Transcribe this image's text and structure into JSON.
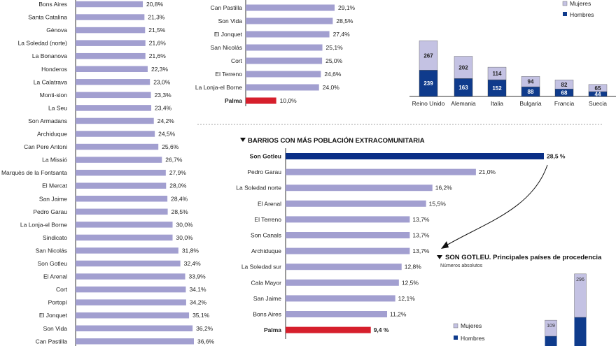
{
  "colors": {
    "bar": "#a29fd0",
    "highlight": "#0a2f86",
    "palma": "#d61f2c",
    "women": "#c4c2e3",
    "men": "#0f3b8c",
    "axis": "#333333"
  },
  "chart_data": [
    {
      "type": "bar",
      "orientation": "horizontal",
      "title": "",
      "categories": [
        "Bons Aires",
        "Santa Catalina",
        "Gènova",
        "La Soledad (norte)",
        "La Bonanova",
        "Honderos",
        "La Calatrava",
        "Monti-sion",
        "La Seu",
        "Son Armadans",
        "Archiduque",
        "Can Pere Antoni",
        "La Missió",
        "Marquès de la Fontsanta",
        "El Mercat",
        "San Jaime",
        "Pedro Garau",
        "La Lonja-el Borne",
        "Sindicato",
        "San Nicolás",
        "Son Gotleu",
        "El Arenal",
        "Cort",
        "Portopí",
        "El Jonquet",
        "Son Vida",
        "Can Pastilla"
      ],
      "values": [
        20.8,
        21.3,
        21.5,
        21.6,
        21.6,
        22.3,
        23.0,
        23.3,
        23.4,
        24.2,
        24.5,
        25.6,
        26.7,
        27.9,
        28.0,
        28.4,
        28.5,
        30.0,
        30.0,
        31.8,
        32.4,
        33.9,
        34.1,
        34.2,
        35.1,
        36.2,
        36.6
      ],
      "value_labels": [
        "20,8%",
        "21,3%",
        "21,5%",
        "21,6%",
        "21,6%",
        "22,3%",
        "23,0%",
        "23,3%",
        "23,4%",
        "24,2%",
        "24,5%",
        "25,6%",
        "26,7%",
        "27,9%",
        "28,0%",
        "28,4%",
        "28,5%",
        "30,0%",
        "30,0%",
        "31,8%",
        "32,4%",
        "33,9%",
        "34,1%",
        "34,2%",
        "35,1%",
        "36,2%",
        "36,6%"
      ]
    },
    {
      "type": "bar",
      "orientation": "horizontal",
      "title": "",
      "categories": [
        "Can Pastilla",
        "Son Vida",
        "El Jonquet",
        "San Nicolás",
        "Cort",
        "El Terreno",
        "La Lonja-el Borne",
        "Palma"
      ],
      "values": [
        29.1,
        28.5,
        27.4,
        25.1,
        25.0,
        24.6,
        24.0,
        10.0
      ],
      "value_labels": [
        "29,1%",
        "28,5%",
        "27,4%",
        "25,1%",
        "25,0%",
        "24,6%",
        "24,0%",
        "10,0%"
      ]
    },
    {
      "type": "bar",
      "stacked": true,
      "title": "",
      "categories": [
        "Reino Unido",
        "Alemania",
        "Italia",
        "Bulgaria",
        "Francia",
        "Suecia"
      ],
      "series": [
        {
          "name": "Hombres",
          "values": [
            239,
            163,
            152,
            88,
            68,
            44
          ]
        },
        {
          "name": "Mujeres",
          "values": [
            267,
            202,
            114,
            94,
            82,
            65
          ]
        }
      ],
      "legend": [
        "Mujeres",
        "Hombres"
      ]
    },
    {
      "type": "bar",
      "orientation": "horizontal",
      "title": "BARRIOS CON MÁS POBLACIÓN EXTRACOMUNITARIA",
      "categories": [
        "Son Gotleu",
        "Pedro Garau",
        "La Soledad norte",
        "El Arenal",
        "El Terreno",
        "Son Canals",
        "Archiduque",
        "La Soledad sur",
        "Cala Mayor",
        "San Jaime",
        "Bons Aires",
        "Palma"
      ],
      "values": [
        28.5,
        21.0,
        16.2,
        15.5,
        13.7,
        13.7,
        13.7,
        12.8,
        12.5,
        12.1,
        11.2,
        9.4
      ],
      "value_labels": [
        "28,5 %",
        "21,0%",
        "16,2%",
        "15,5%",
        "13,7%",
        "13,7%",
        "13,7%",
        "12,8%",
        "12,5%",
        "12,1%",
        "11,2%",
        "9,4 %"
      ]
    },
    {
      "type": "bar",
      "stacked": true,
      "title": "SON GOTLEU. Principales países de procedencia",
      "subtitle": "Números absolutos",
      "categories": [
        "",
        ""
      ],
      "series": [
        {
          "name": "Hombres",
          "values": [
            null,
            null
          ]
        },
        {
          "name": "Mujeres",
          "values": [
            109,
            296
          ]
        }
      ],
      "value_labels": [
        "109",
        "296"
      ],
      "legend": [
        "Mujeres",
        "Hombres"
      ]
    }
  ]
}
